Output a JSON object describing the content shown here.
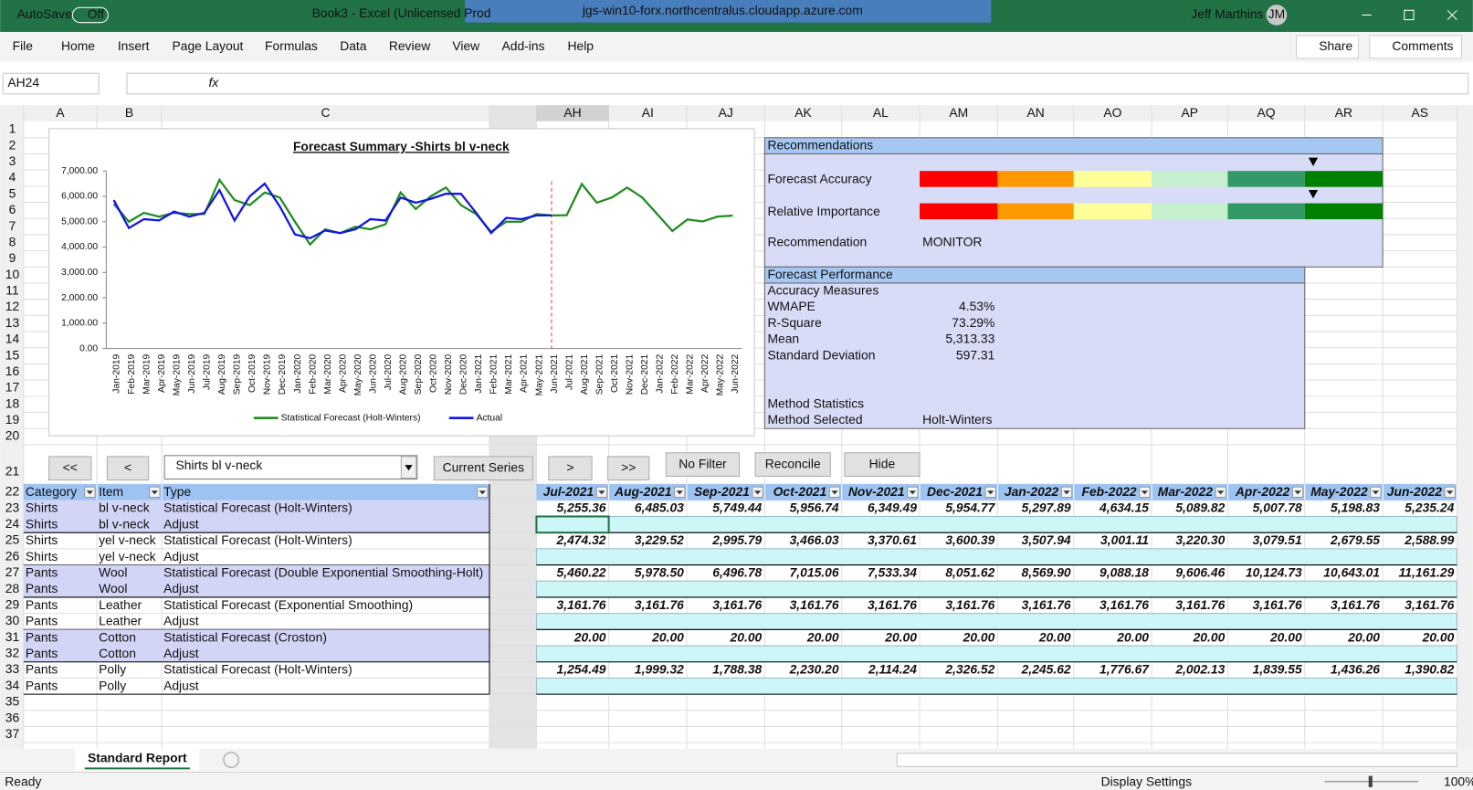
{
  "title_bar": {
    "autosave": "AutoSave",
    "toggle": "Off",
    "document": "Book3  -  Excel (Unlicensed Prod",
    "remote_host": "jgs-win10-forx.northcentralus.cloudapp.azure.com",
    "user": "Jeff Marthins",
    "initials": "JM"
  },
  "ribbon": {
    "tabs": [
      "File",
      "Home",
      "Insert",
      "Page Layout",
      "Formulas",
      "Data",
      "Review",
      "View",
      "Add-ins",
      "Help"
    ],
    "share": "Share",
    "comments": "Comments"
  },
  "formula_bar": {
    "name_box": "AH24",
    "function_icon": "fx"
  },
  "columns": [
    "A",
    "B",
    "C",
    "AH",
    "AI",
    "AJ",
    "AK",
    "AL",
    "AM",
    "AN",
    "AO",
    "AP",
    "AQ",
    "AR",
    "AS"
  ],
  "rows": [
    1,
    2,
    3,
    4,
    5,
    6,
    7,
    8,
    9,
    10,
    11,
    12,
    13,
    14,
    15,
    16,
    17,
    18,
    19,
    20,
    21,
    22,
    23,
    24,
    25,
    26,
    27,
    28,
    29,
    30,
    31,
    32,
    33,
    34,
    35,
    36,
    37
  ],
  "chart": {
    "type": "line",
    "title": "Forecast Summary -Shirts bl v-neck",
    "categories": [
      "Jan-2019",
      "Feb-2019",
      "Mar-2019",
      "Apr-2019",
      "May-2019",
      "Jun-2019",
      "Jul-2019",
      "Aug-2019",
      "Sep-2019",
      "Oct-2019",
      "Nov-2019",
      "Dec-2019",
      "Jan-2020",
      "Feb-2020",
      "Mar-2020",
      "Apr-2020",
      "May-2020",
      "Jun-2020",
      "Jul-2020",
      "Aug-2020",
      "Sep-2020",
      "Oct-2020",
      "Nov-2020",
      "Dec-2020",
      "Jan-2021",
      "Feb-2021",
      "Mar-2021",
      "Apr-2021",
      "May-2021",
      "Jun-2021",
      "Jul-2021",
      "Aug-2021",
      "Sep-2021",
      "Oct-2021",
      "Nov-2021",
      "Dec-2021",
      "Jan-2022",
      "Feb-2022",
      "Mar-2022",
      "Apr-2022",
      "May-2022",
      "Jun-2022"
    ],
    "series": [
      {
        "name": "Statistical Forecast (Holt-Winters)",
        "color": "#1e8c1e",
        "values": [
          5700,
          5000,
          5350,
          5200,
          5350,
          5300,
          5300,
          6650,
          5850,
          5650,
          6150,
          5950,
          5000,
          4100,
          4700,
          4550,
          4800,
          4700,
          4900,
          6150,
          5500,
          6000,
          6350,
          5650,
          5300,
          4600,
          5000,
          5000,
          5300,
          5250,
          5255.36,
          6485.03,
          5749.44,
          5956.74,
          6349.49,
          5954.77,
          5297.89,
          4634.15,
          5089.82,
          5007.78,
          5198.83,
          5235.24
        ]
      },
      {
        "name": "Actual",
        "color": "#1414e6",
        "values": [
          5850,
          4750,
          5100,
          5050,
          5400,
          5200,
          5350,
          6250,
          5050,
          6000,
          6500,
          5600,
          4500,
          4350,
          4650,
          4550,
          4700,
          5100,
          5050,
          5950,
          5750,
          5900,
          6100,
          6100,
          5350,
          4550,
          5150,
          5100,
          5250,
          5250,
          null,
          null,
          null,
          null,
          null,
          null,
          null,
          null,
          null,
          null,
          null,
          null
        ]
      }
    ],
    "ylim": [
      0,
      7000
    ],
    "yticks": [
      {
        "value": 0,
        "label": "0.00"
      },
      {
        "value": 1000,
        "label": "1,000.00"
      },
      {
        "value": 2000,
        "label": "2,000.00"
      },
      {
        "value": 3000,
        "label": "3,000.00"
      },
      {
        "value": 4000,
        "label": "4,000.00"
      },
      {
        "value": 5000,
        "label": "5,000.00"
      },
      {
        "value": 6000,
        "label": "6,000.00"
      },
      {
        "value": 7000,
        "label": "7,000.00"
      }
    ],
    "legend": "bottom"
  },
  "recommendations": {
    "title": "Recommendations",
    "forecast_accuracy": "Forecast Accuracy",
    "relative_importance": "Relative Importance",
    "recommendation_label": "Recommendation",
    "recommendation_value": "MONITOR"
  },
  "performance": {
    "title": "Forecast Performance",
    "subtitle": "Accuracy Measures",
    "measures": [
      [
        "WMAPE",
        "4.53%"
      ],
      [
        "R-Square",
        "73.29%"
      ],
      [
        "Mean",
        "5,313.33"
      ],
      [
        "Standard Deviation",
        "597.31"
      ]
    ],
    "method_statistics": "Method Statistics",
    "method_selected_label": "Method Selected",
    "method_selected": "Holt-Winters"
  },
  "controls": {
    "buttons": [
      "<<",
      "<",
      "Current Series",
      ">",
      ">>",
      "No Filter",
      "Reconcile",
      "Hide"
    ],
    "series_select": "Shirts bl v-neck"
  },
  "table": {
    "headers": [
      "Category",
      "Item",
      "Type",
      "Jul-2021",
      "Aug-2021",
      "Sep-2021",
      "Oct-2021",
      "Nov-2021",
      "Dec-2021",
      "Jan-2022",
      "Feb-2022",
      "Mar-2022",
      "Apr-2022",
      "May-2022",
      "Jun-2022"
    ],
    "rows": [
      [
        "Shirts",
        "bl v-neck",
        "Statistical Forecast (Holt-Winters)",
        "5,255.36",
        "6,485.03",
        "5,749.44",
        "5,956.74",
        "6,349.49",
        "5,954.77",
        "5,297.89",
        "4,634.15",
        "5,089.82",
        "5,007.78",
        "5,198.83",
        "5,235.24"
      ],
      [
        "Shirts",
        "bl v-neck",
        "Adjust"
      ],
      [
        "Shirts",
        "yel v-neck",
        "Statistical Forecast (Holt-Winters)",
        "2,474.32",
        "3,229.52",
        "2,995.79",
        "3,466.03",
        "3,370.61",
        "3,600.39",
        "3,507.94",
        "3,001.11",
        "3,220.30",
        "3,079.51",
        "2,679.55",
        "2,588.99"
      ],
      [
        "Shirts",
        "yel v-neck",
        "Adjust"
      ],
      [
        "Pants",
        "Wool",
        "Statistical Forecast (Double Exponential Smoothing-Holt)",
        "5,460.22",
        "5,978.50",
        "6,496.78",
        "7,015.06",
        "7,533.34",
        "8,051.62",
        "8,569.90",
        "9,088.18",
        "9,606.46",
        "10,124.73",
        "10,643.01",
        "11,161.29"
      ],
      [
        "Pants",
        "Wool",
        "Adjust"
      ],
      [
        "Pants",
        "Leather",
        "Statistical Forecast (Exponential Smoothing)",
        "3,161.76",
        "3,161.76",
        "3,161.76",
        "3,161.76",
        "3,161.76",
        "3,161.76",
        "3,161.76",
        "3,161.76",
        "3,161.76",
        "3,161.76",
        "3,161.76",
        "3,161.76"
      ],
      [
        "Pants",
        "Leather",
        "Adjust"
      ],
      [
        "Pants",
        "Cotton",
        "Statistical Forecast (Croston)",
        "20.00",
        "20.00",
        "20.00",
        "20.00",
        "20.00",
        "20.00",
        "20.00",
        "20.00",
        "20.00",
        "20.00",
        "20.00",
        "20.00"
      ],
      [
        "Pants",
        "Cotton",
        "Adjust"
      ],
      [
        "Pants",
        "Polly",
        "Statistical Forecast (Holt-Winters)",
        "1,254.49",
        "1,999.32",
        "1,788.38",
        "2,230.20",
        "2,114.24",
        "2,326.52",
        "2,245.62",
        "1,776.67",
        "2,002.13",
        "1,839.55",
        "1,436.26",
        "1,390.82"
      ],
      [
        "Pants",
        "Polly",
        "Adjust"
      ]
    ]
  },
  "sheet_tab": "Standard Report",
  "status": {
    "ready": "Ready",
    "display_settings": "Display Settings",
    "zoom": "100%"
  }
}
